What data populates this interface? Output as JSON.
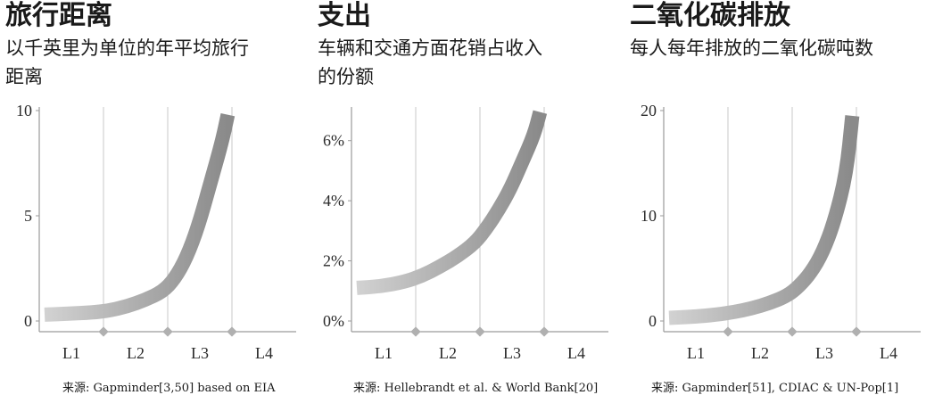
{
  "panels": [
    {
      "title": "旅行距离",
      "subtitle": "以千英里为单位的年平均旅行\n距离",
      "source": "来源: Gapminder[3,50] based on EIA"
    },
    {
      "title": "支出",
      "subtitle": "车辆和交通方面花销占收入\n的份额",
      "source": "来源: Hellebrandt et al. & World Bank[20]"
    },
    {
      "title": "二氧化碳排放",
      "subtitle": "每人每年排放的二氧化碳吨数",
      "source": "来源: Gapminder[51], CDIAC & UN-Pop[1]"
    }
  ],
  "chart_data": [
    {
      "type": "line",
      "title": "旅行距离",
      "categories": [
        "L1",
        "L2",
        "L3",
        "L4"
      ],
      "yticks": [
        "0",
        "5",
        "10"
      ],
      "ylim": [
        0,
        10
      ],
      "points": [
        [
          0.0,
          0.3
        ],
        [
          0.2,
          0.35
        ],
        [
          0.4,
          0.4
        ],
        [
          0.55,
          0.5
        ],
        [
          0.7,
          0.7
        ],
        [
          0.85,
          1.0
        ],
        [
          1.0,
          1.4
        ],
        [
          1.1,
          2.0
        ],
        [
          1.2,
          3.0
        ],
        [
          1.3,
          4.5
        ],
        [
          1.4,
          6.5
        ],
        [
          1.5,
          8.5
        ],
        [
          1.55,
          9.8
        ]
      ],
      "grid": "vertical dividers between categories"
    },
    {
      "type": "line",
      "title": "支出",
      "categories": [
        "L1",
        "L2",
        "L3",
        "L4"
      ],
      "yticks": [
        "0%",
        "2%",
        "4%",
        "6%"
      ],
      "ylim": [
        0,
        7
      ],
      "points": [
        [
          0.0,
          1.1
        ],
        [
          0.2,
          1.15
        ],
        [
          0.4,
          1.3
        ],
        [
          0.55,
          1.5
        ],
        [
          0.7,
          1.8
        ],
        [
          0.85,
          2.15
        ],
        [
          1.0,
          2.6
        ],
        [
          1.1,
          3.1
        ],
        [
          1.2,
          3.7
        ],
        [
          1.3,
          4.4
        ],
        [
          1.4,
          5.3
        ],
        [
          1.5,
          6.2
        ],
        [
          1.55,
          6.95
        ]
      ],
      "grid": "vertical dividers between categories"
    },
    {
      "type": "line",
      "title": "二氧化碳排放",
      "categories": [
        "L1",
        "L2",
        "L3",
        "L4"
      ],
      "yticks": [
        "0",
        "10",
        "20"
      ],
      "ylim": [
        0,
        20
      ],
      "points": [
        [
          0.0,
          0.3
        ],
        [
          0.2,
          0.4
        ],
        [
          0.4,
          0.6
        ],
        [
          0.55,
          0.85
        ],
        [
          0.7,
          1.2
        ],
        [
          0.85,
          1.7
        ],
        [
          1.0,
          2.4
        ],
        [
          1.1,
          3.3
        ],
        [
          1.2,
          4.6
        ],
        [
          1.3,
          6.5
        ],
        [
          1.4,
          9.5
        ],
        [
          1.5,
          14.0
        ],
        [
          1.55,
          19.5
        ]
      ],
      "grid": "vertical dividers between categories"
    }
  ],
  "colors": {
    "curve_light": "#d2d2d2",
    "curve_dark": "#8a8a8a",
    "axis": "#9a9a9a",
    "grid": "#c8c8c8",
    "marker": "#b0b0b0"
  }
}
